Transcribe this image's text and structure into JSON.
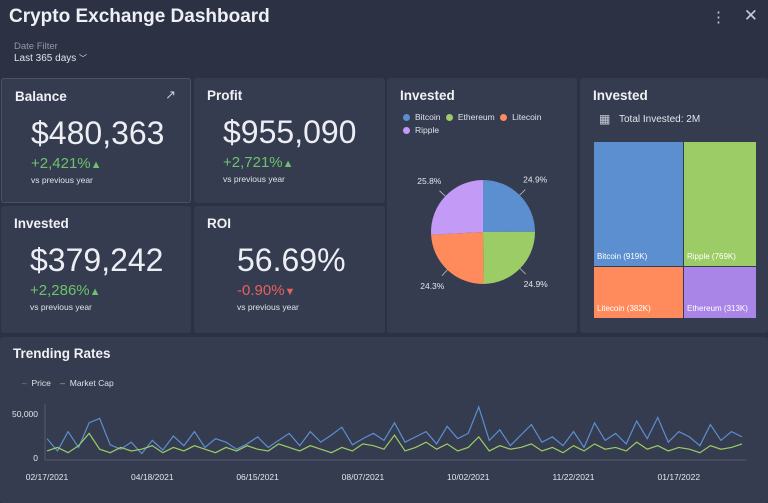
{
  "header": {
    "title": "Crypto Exchange Dashboard",
    "menu_icon": "⋮",
    "close_icon": "✕"
  },
  "filter": {
    "label": "Date Filter",
    "value": "Last 365 days",
    "chevron": "﹀"
  },
  "kpis": [
    {
      "title": "Balance",
      "value": "$480,363",
      "change": "+2,421%",
      "arrow": "▲",
      "trend": "up",
      "sub": "vs previous year",
      "expand_icon": "↗"
    },
    {
      "title": "Profit",
      "value": "$955,090",
      "change": "+2,721%",
      "arrow": "▲",
      "trend": "up",
      "sub": "vs previous year"
    },
    {
      "title": "Invested",
      "value": "$379,242",
      "change": "+2,286%",
      "arrow": "▲",
      "trend": "up",
      "sub": "vs previous year"
    },
    {
      "title": "ROI",
      "value": "56.69%",
      "change": "-0.90%",
      "arrow": "▼",
      "trend": "down",
      "sub": "vs previous year"
    }
  ],
  "colors": {
    "bitcoin": "#5b8fcf",
    "ethereum": "#9ccc65",
    "litecoin": "#ff8a5c",
    "ripple": "#c39af5",
    "ripple_treemap": "#a985e8",
    "up": "#6cc36c",
    "down": "#e85f5f"
  },
  "chart_data": [
    {
      "type": "pie",
      "title": "Invested",
      "legend": [
        "Bitcoin",
        "Ethereum",
        "Litecoin",
        "Ripple"
      ],
      "slices": [
        {
          "name": "Bitcoin",
          "value": 24.9,
          "label": "24.9%"
        },
        {
          "name": "Ethereum",
          "value": 24.9,
          "label": "24.9%"
        },
        {
          "name": "Litecoin",
          "value": 24.3,
          "label": "24.3%"
        },
        {
          "name": "Ripple",
          "value": 25.8,
          "label": "25.8%"
        }
      ]
    },
    {
      "type": "treemap",
      "title": "Invested",
      "total_label": "Total Invested: 2M",
      "items": [
        {
          "label": "Bitcoin (919K)",
          "value": 919
        },
        {
          "label": "Ripple (769K)",
          "value": 769
        },
        {
          "label": "Litecoin (382K)",
          "value": 382
        },
        {
          "label": "Ethereum (313K)",
          "value": 313
        }
      ]
    },
    {
      "type": "line",
      "title": "Trending Rates",
      "legend_placement": "top-left",
      "yticks": [
        "0",
        "50,000"
      ],
      "ylim": [
        0,
        60000
      ],
      "xticks": [
        "02/17/2021",
        "04/18/2021",
        "06/15/2021",
        "08/07/2021",
        "10/02/2021",
        "11/22/2021",
        "01/17/2022"
      ],
      "series": [
        {
          "name": "Price",
          "values": [
            22000,
            8000,
            30000,
            12000,
            40000,
            45000,
            15000,
            10000,
            18000,
            5000,
            20000,
            9000,
            25000,
            14000,
            30000,
            12000,
            22000,
            18000,
            10000,
            16000,
            24000,
            12000,
            20000,
            28000,
            14000,
            30000,
            18000,
            26000,
            35000,
            15000,
            22000,
            28000,
            20000,
            40000,
            18000,
            24000,
            30000,
            16000,
            36000,
            22000,
            28000,
            58000,
            20000,
            32000,
            14000,
            26000,
            38000,
            18000,
            24000,
            14000,
            30000,
            12000,
            40000,
            20000,
            28000,
            16000,
            42000,
            22000,
            46000,
            18000,
            30000,
            24000,
            14000,
            38000,
            20000,
            30000,
            24000
          ]
        },
        {
          "name": "Market Cap",
          "values": [
            8000,
            12000,
            6000,
            14000,
            28000,
            10000,
            6000,
            12000,
            8000,
            10000,
            14000,
            6000,
            12000,
            8000,
            14000,
            10000,
            6000,
            12000,
            8000,
            14000,
            10000,
            8000,
            16000,
            12000,
            8000,
            14000,
            10000,
            6000,
            12000,
            8000,
            16000,
            14000,
            10000,
            26000,
            8000,
            12000,
            18000,
            10000,
            16000,
            8000,
            12000,
            24000,
            8000,
            14000,
            10000,
            12000,
            16000,
            8000,
            12000,
            6000,
            14000,
            8000,
            16000,
            10000,
            12000,
            8000,
            18000,
            10000,
            14000,
            8000,
            12000,
            10000,
            6000,
            14000,
            10000,
            12000,
            16000
          ]
        }
      ]
    }
  ]
}
